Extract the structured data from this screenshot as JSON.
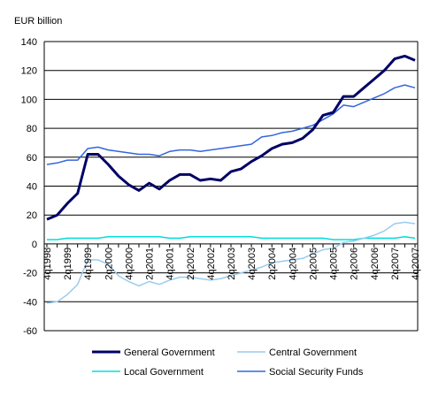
{
  "chart_data": {
    "type": "line",
    "unit_label": "EUR billion",
    "ylim": [
      -60,
      140
    ],
    "y_ticks": [
      -60,
      -40,
      -20,
      0,
      20,
      40,
      60,
      80,
      100,
      120,
      140
    ],
    "grid": true,
    "legend_position": "bottom",
    "x": [
      "4q1998",
      "1q1999",
      "2q1999",
      "3q1999",
      "4q1999",
      "1q2000",
      "2q2000",
      "3q2000",
      "4q2000",
      "1q2001",
      "2q2001",
      "3q2001",
      "4q2001",
      "1q2002",
      "2q2002",
      "3q2002",
      "4q2002",
      "1q2003",
      "2q2003",
      "3q2003",
      "4q2003",
      "1q2004",
      "2q2004",
      "3q2004",
      "4q2004",
      "1q2005",
      "2q2005",
      "3q2005",
      "4q2005",
      "1q2006",
      "2q2006",
      "3q2006",
      "4q2006",
      "1q2007",
      "2q2007",
      "3q2007",
      "4q2007"
    ],
    "x_tick_labels": [
      "4q1998",
      "2q1999",
      "4q1999",
      "2q2000",
      "4q2000",
      "2q2001",
      "4q2001",
      "2q2002",
      "4q2002",
      "2q2003",
      "4q2003",
      "2q2004",
      "4q2004",
      "2q2005",
      "4q2005",
      "2q2006",
      "4q2006",
      "2q2007",
      "4q2007"
    ],
    "series": [
      {
        "name": "General Government",
        "color": "#000066",
        "width": 3,
        "values": [
          17,
          20,
          28,
          35,
          62,
          62,
          55,
          47,
          41,
          37,
          42,
          38,
          44,
          48,
          48,
          44,
          45,
          44,
          50,
          52,
          57,
          61,
          66,
          69,
          70,
          73,
          79,
          89,
          91,
          102,
          102,
          108,
          114,
          120,
          128,
          130,
          127
        ]
      },
      {
        "name": "Central Government",
        "color": "#99ccee",
        "width": 1.5,
        "values": [
          -41,
          -40,
          -35,
          -28,
          -11,
          -11,
          -14,
          -22,
          -26,
          -29,
          -26,
          -28,
          -25,
          -23,
          -23,
          -24,
          -25,
          -24,
          -22,
          -20,
          -18,
          -16,
          -13,
          -12,
          -11,
          -10,
          -7,
          -4,
          -3,
          1,
          2,
          4,
          6,
          9,
          14,
          15,
          14
        ]
      },
      {
        "name": "Local Government",
        "color": "#00dddd",
        "width": 1.5,
        "values": [
          3,
          3,
          4,
          4,
          4,
          4,
          5,
          5,
          5,
          5,
          5,
          5,
          4,
          4,
          5,
          5,
          5,
          5,
          5,
          5,
          5,
          4,
          4,
          4,
          4,
          4,
          4,
          4,
          3,
          3,
          3,
          4,
          4,
          4,
          4,
          5,
          4
        ]
      },
      {
        "name": "Social Security Funds",
        "color": "#3366dd",
        "width": 1.5,
        "values": [
          55,
          56,
          58,
          58,
          66,
          67,
          65,
          64,
          63,
          62,
          62,
          61,
          64,
          65,
          65,
          64,
          65,
          66,
          67,
          68,
          69,
          74,
          75,
          77,
          78,
          80,
          82,
          86,
          90,
          96,
          95,
          98,
          101,
          104,
          108,
          110,
          108
        ]
      }
    ]
  }
}
